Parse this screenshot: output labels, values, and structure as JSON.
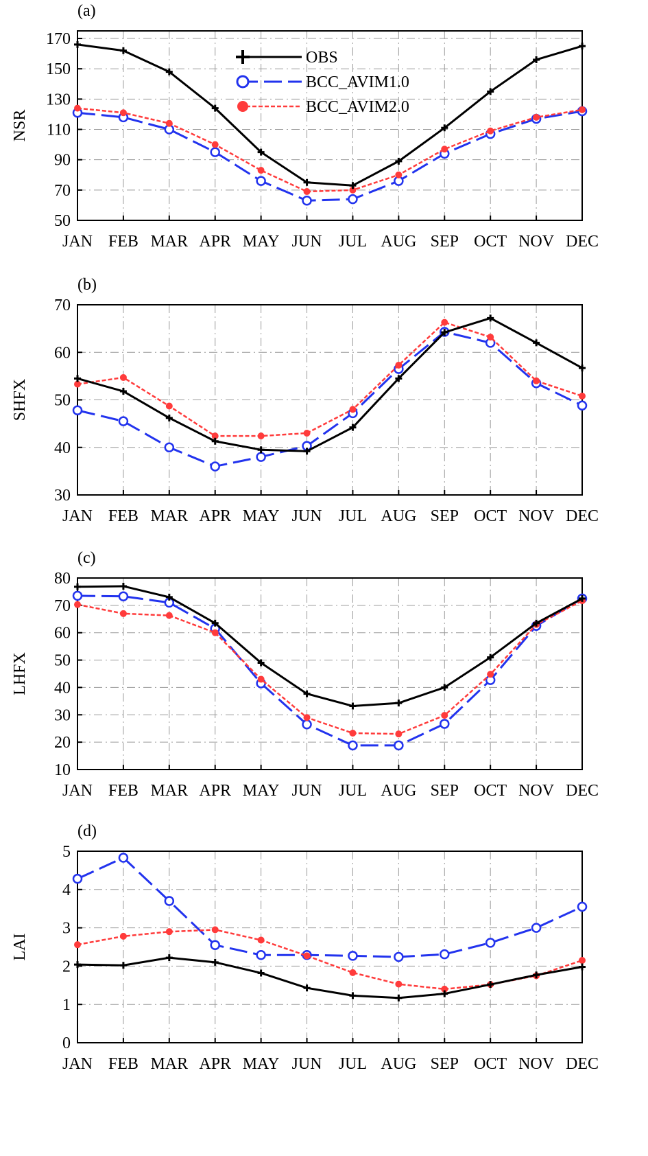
{
  "chart_data": [
    {
      "type": "line",
      "panel_label": "(a)",
      "ylabel": "NSR",
      "categories": [
        "JAN",
        "FEB",
        "MAR",
        "APR",
        "MAY",
        "JUN",
        "JUL",
        "AUG",
        "SEP",
        "OCT",
        "NOV",
        "DEC"
      ],
      "ylim": [
        50,
        175
      ],
      "yticks": [
        50,
        70,
        90,
        110,
        130,
        150,
        170
      ],
      "grid": true,
      "legend_position": "top-center",
      "series": [
        {
          "name": "OBS",
          "color": "#000000",
          "marker": "plus",
          "values": [
            166,
            162,
            148,
            124,
            95,
            75,
            73,
            89,
            111,
            135,
            156,
            165
          ]
        },
        {
          "name": "BCC_AVIM1.0",
          "color": "#2233ee",
          "marker": "circle",
          "values": [
            121,
            118,
            110,
            95,
            76,
            63,
            64,
            76,
            94,
            107,
            117,
            122
          ]
        },
        {
          "name": "BCC_AVIM2.0",
          "color": "#ff3b3b",
          "marker": "dot",
          "values": [
            124,
            121,
            114,
            100,
            83,
            69,
            70,
            80,
            97,
            109,
            118,
            123
          ]
        }
      ]
    },
    {
      "type": "line",
      "panel_label": "(b)",
      "ylabel": "SHFX",
      "categories": [
        "JAN",
        "FEB",
        "MAR",
        "APR",
        "MAY",
        "JUN",
        "JUL",
        "AUG",
        "SEP",
        "OCT",
        "NOV",
        "DEC"
      ],
      "ylim": [
        30,
        70
      ],
      "yticks": [
        30,
        40,
        50,
        60,
        70
      ],
      "grid": true,
      "series": [
        {
          "name": "OBS",
          "color": "#000000",
          "marker": "plus",
          "values": [
            54.5,
            51.8,
            46.2,
            41.3,
            39.5,
            39.2,
            44.2,
            54.5,
            64.2,
            67.2,
            62.0,
            56.7
          ]
        },
        {
          "name": "BCC_AVIM1.0",
          "color": "#2233ee",
          "marker": "circle",
          "values": [
            47.8,
            45.5,
            40.0,
            36.0,
            38.0,
            40.3,
            47.2,
            56.5,
            64.3,
            62.0,
            53.5,
            48.8
          ]
        },
        {
          "name": "BCC_AVIM2.0",
          "color": "#ff3b3b",
          "marker": "dot",
          "values": [
            53.3,
            54.7,
            48.7,
            42.4,
            42.4,
            43.0,
            48.0,
            57.3,
            66.3,
            63.2,
            54.0,
            50.8
          ]
        }
      ]
    },
    {
      "type": "line",
      "panel_label": "(c)",
      "ylabel": "LHFX",
      "categories": [
        "JAN",
        "FEB",
        "MAR",
        "APR",
        "MAY",
        "JUN",
        "JUL",
        "AUG",
        "SEP",
        "OCT",
        "NOV",
        "DEC"
      ],
      "ylim": [
        10,
        80
      ],
      "yticks": [
        10,
        20,
        30,
        40,
        50,
        60,
        70,
        80
      ],
      "grid": true,
      "series": [
        {
          "name": "OBS",
          "color": "#000000",
          "marker": "plus",
          "values": [
            76.8,
            77.0,
            73.0,
            63.5,
            49.0,
            37.7,
            33.2,
            34.3,
            40.0,
            51.0,
            63.5,
            72.5
          ]
        },
        {
          "name": "BCC_AVIM1.0",
          "color": "#2233ee",
          "marker": "circle",
          "values": [
            73.5,
            73.3,
            71.0,
            61.5,
            41.5,
            26.5,
            18.8,
            18.8,
            26.7,
            42.7,
            62.5,
            72.5
          ]
        },
        {
          "name": "BCC_AVIM2.0",
          "color": "#ff3b3b",
          "marker": "dot",
          "values": [
            70.3,
            67.0,
            66.3,
            60.0,
            43.0,
            29.0,
            23.3,
            23.0,
            29.8,
            44.8,
            63.0,
            71.7
          ]
        }
      ]
    },
    {
      "type": "line",
      "panel_label": "(d)",
      "ylabel": "LAI",
      "categories": [
        "JAN",
        "FEB",
        "MAR",
        "APR",
        "MAY",
        "JUN",
        "JUL",
        "AUG",
        "SEP",
        "OCT",
        "NOV",
        "DEC"
      ],
      "ylim": [
        0,
        5
      ],
      "yticks": [
        0,
        1,
        2,
        3,
        4,
        5
      ],
      "grid": true,
      "series": [
        {
          "name": "OBS",
          "color": "#000000",
          "marker": "plus",
          "values": [
            2.04,
            2.02,
            2.22,
            2.1,
            1.82,
            1.43,
            1.23,
            1.17,
            1.28,
            1.52,
            1.77,
            1.98
          ]
        },
        {
          "name": "BCC_AVIM1.0",
          "color": "#2233ee",
          "marker": "circle",
          "values": [
            4.28,
            4.83,
            3.7,
            2.55,
            2.29,
            2.29,
            2.27,
            2.24,
            2.31,
            2.61,
            3.0,
            3.55
          ]
        },
        {
          "name": "BCC_AVIM2.0",
          "color": "#ff3b3b",
          "marker": "dot",
          "values": [
            2.56,
            2.78,
            2.9,
            2.95,
            2.68,
            2.27,
            1.83,
            1.53,
            1.4,
            1.52,
            1.75,
            2.15
          ]
        }
      ]
    }
  ]
}
